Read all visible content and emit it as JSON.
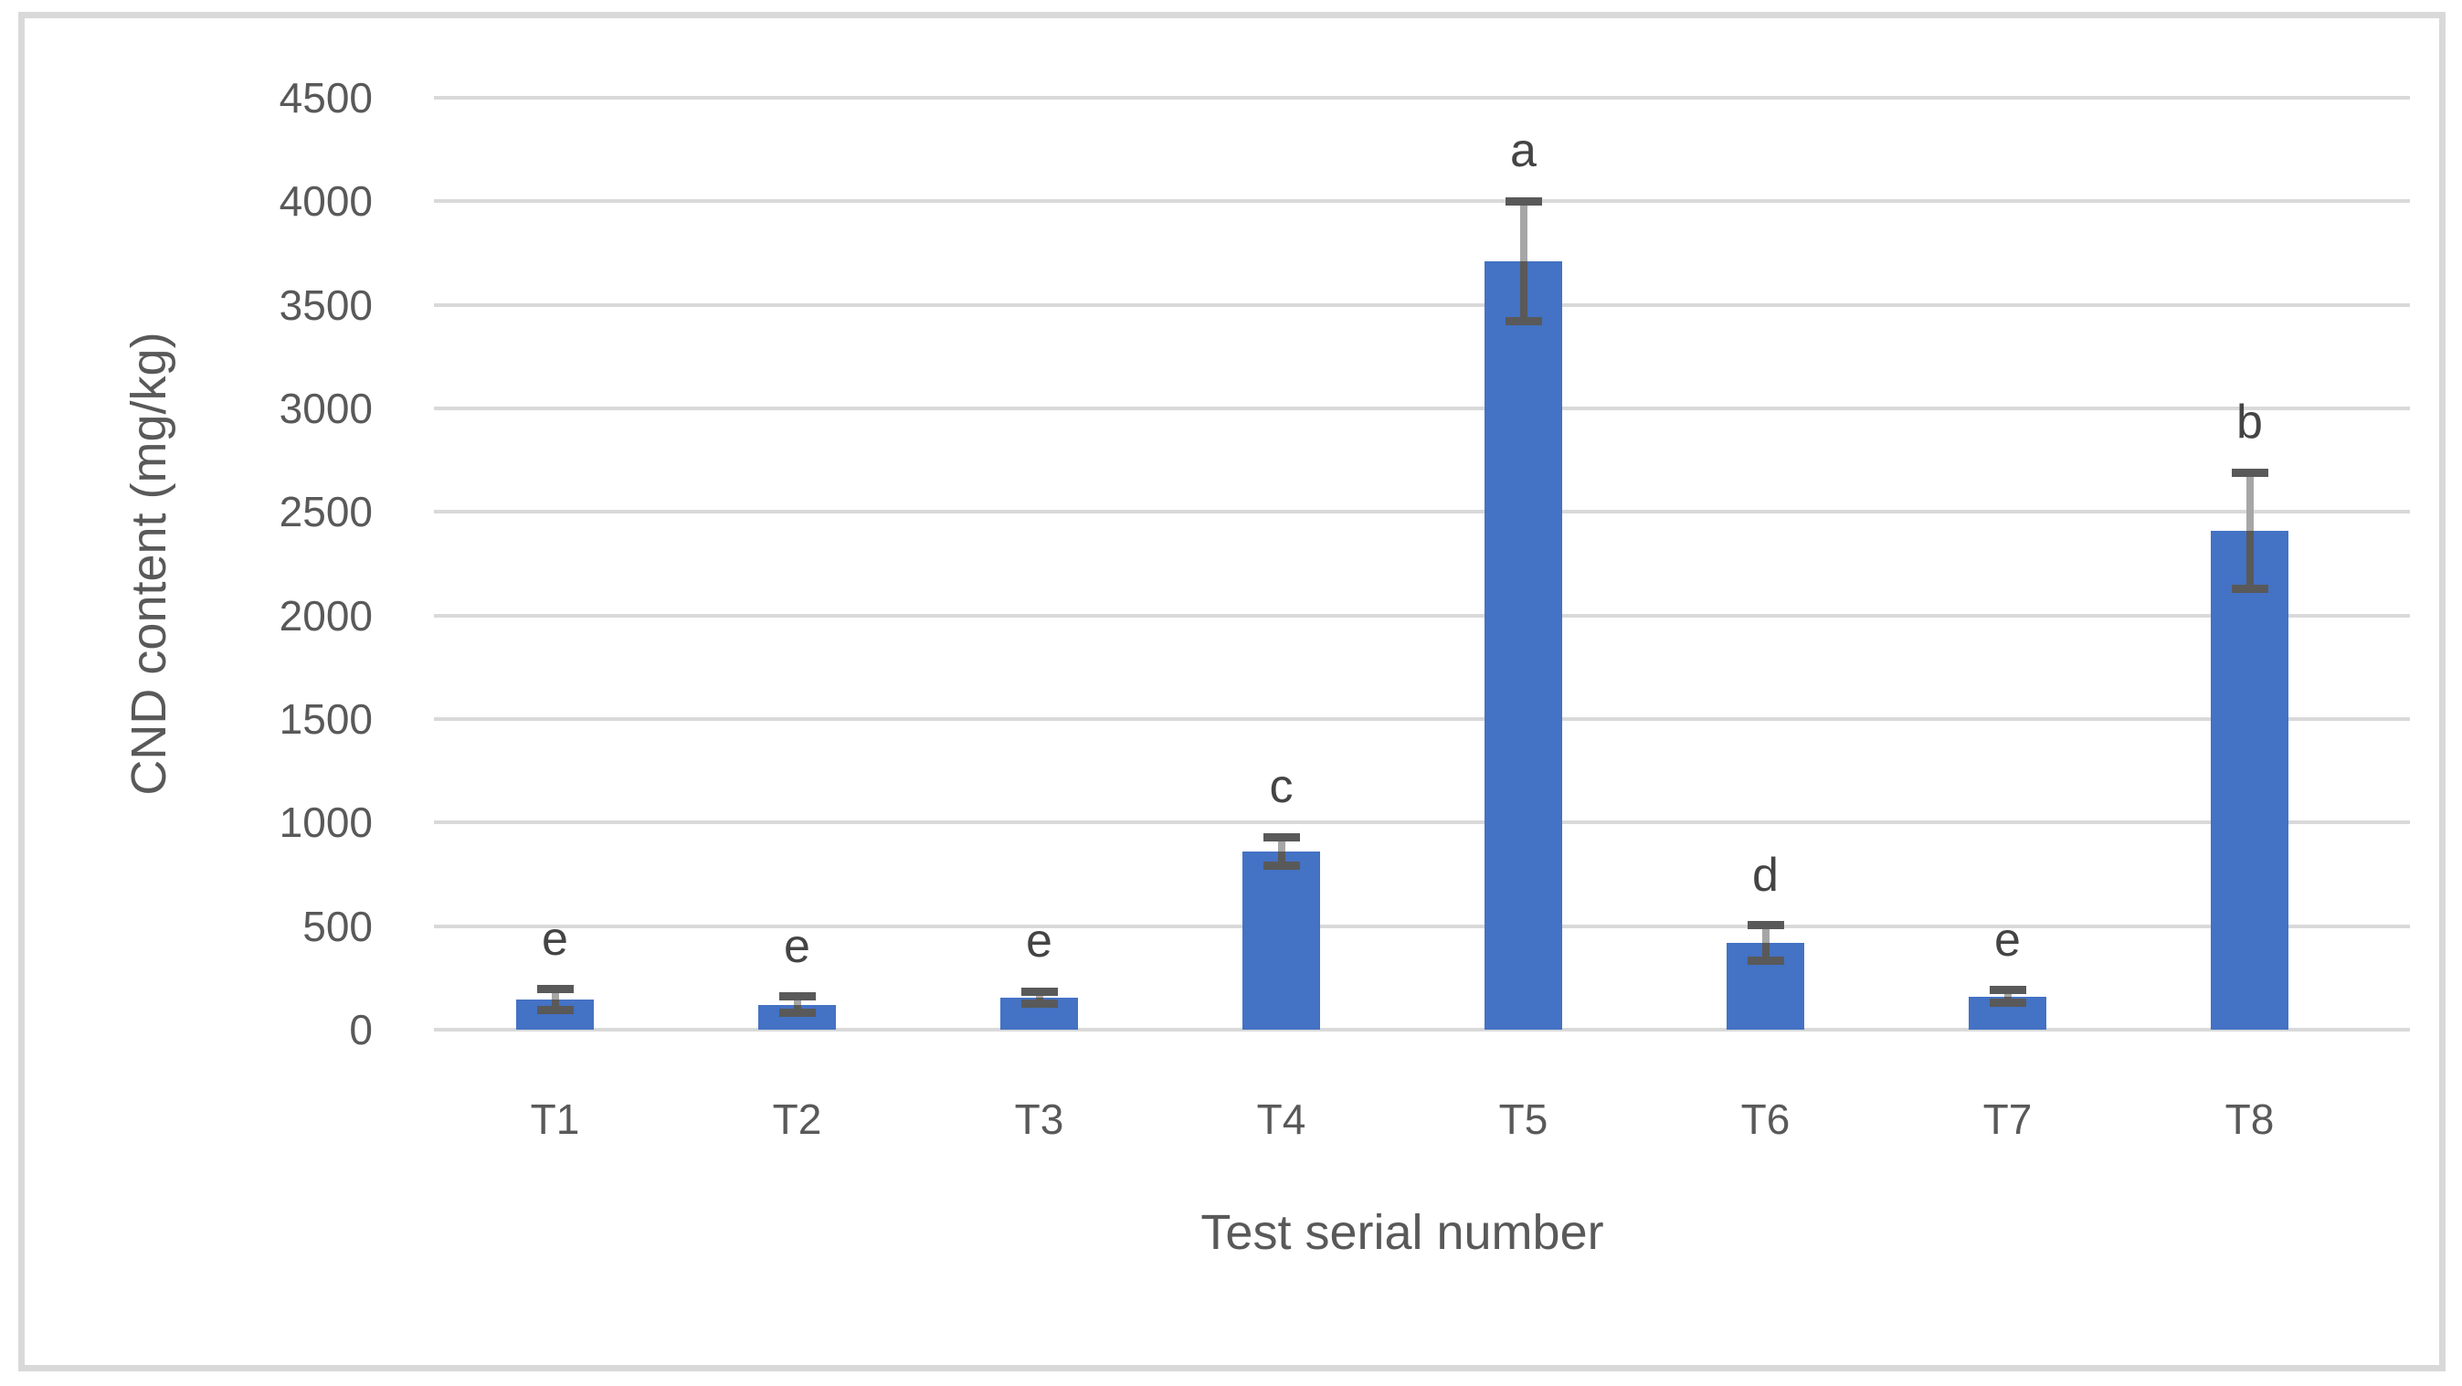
{
  "figure": {
    "y_axis_title": "CND content (mg/kg)",
    "x_axis_title": "Test serial number"
  },
  "chart_data": {
    "type": "bar",
    "title": "",
    "xlabel": "Test serial number",
    "ylabel": "CND content (mg/kg)",
    "categories": [
      "T1",
      "T2",
      "T3",
      "T4",
      "T5",
      "T6",
      "T7",
      "T8"
    ],
    "values": [
      145,
      120,
      155,
      860,
      3710,
      420,
      160,
      2410
    ],
    "error_bars_plus": [
      50,
      40,
      30,
      70,
      290,
      85,
      30,
      280
    ],
    "error_bars_minus": [
      50,
      40,
      30,
      70,
      290,
      85,
      30,
      280
    ],
    "sig_letters": [
      "e",
      "e",
      "e",
      "c",
      "a",
      "d",
      "e",
      "b"
    ],
    "ylim": [
      0,
      4500
    ],
    "ytick_step": 500,
    "ytick_labels": [
      "0",
      "500",
      "1000",
      "1500",
      "2000",
      "2500",
      "3000",
      "3500",
      "4000",
      "4500"
    ],
    "grid": true,
    "legend": false,
    "colors": {
      "bar": "#4472C4",
      "gridline": "#D9D9D9",
      "frame": "#D9D9D9",
      "error_dark": "#595959",
      "error_light": "#A6A6A6",
      "text": "#595959"
    }
  }
}
